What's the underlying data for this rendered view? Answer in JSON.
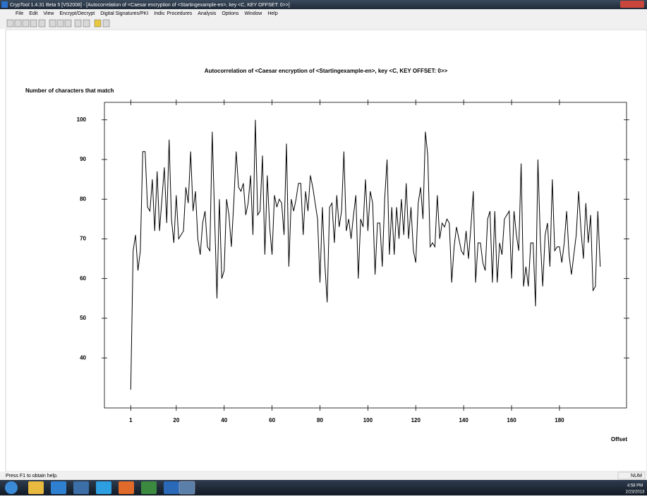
{
  "window": {
    "title": "CrypTool 1.4.31 Beta 5 [VS2008] - [Autocorrelation of <Caesar encryption of <Startingexample-en>, key <C, KEY OFFSET: 0>>]",
    "menu": [
      "File",
      "Edit",
      "View",
      "Encrypt/Decrypt",
      "Digital Signatures/PKI",
      "Indiv. Procedures",
      "Analysis",
      "Options",
      "Window",
      "Help"
    ],
    "status": "Press F1 to obtain help.",
    "status_indicator": "NUM",
    "clock_time": "4:58 PM",
    "clock_date": "2/23/2013"
  },
  "chart_data": {
    "type": "line",
    "title": "Autocorrelation of <Caesar encryption of <Startingexample-en>, key <C, KEY OFFSET: 0>>",
    "ylabel": "Number of characters that match",
    "xlabel": "Offset",
    "color": "#000000",
    "xlim": [
      -10,
      208
    ],
    "xticks": [
      1,
      20,
      40,
      60,
      80,
      100,
      120,
      140,
      160,
      180
    ],
    "ylim": [
      27.4,
      104.4
    ],
    "yticks": [
      40,
      50,
      60,
      70,
      80,
      90,
      100
    ],
    "x": [
      1,
      2,
      3,
      4,
      5,
      6,
      7,
      8,
      9,
      10,
      11,
      12,
      13,
      14,
      15,
      16,
      17,
      18,
      19,
      20,
      21,
      22,
      23,
      24,
      25,
      26,
      27,
      28,
      29,
      30,
      31,
      32,
      33,
      34,
      35,
      36,
      37,
      38,
      39,
      40,
      41,
      42,
      43,
      44,
      45,
      46,
      47,
      48,
      49,
      50,
      51,
      52,
      53,
      54,
      55,
      56,
      57,
      58,
      59,
      60,
      61,
      62,
      63,
      64,
      65,
      66,
      67,
      68,
      69,
      70,
      71,
      72,
      73,
      74,
      75,
      76,
      77,
      78,
      79,
      80,
      81,
      82,
      83,
      84,
      85,
      86,
      87,
      88,
      89,
      90,
      91,
      92,
      93,
      94,
      95,
      96,
      97,
      98,
      99,
      100,
      101,
      102,
      103,
      104,
      105,
      106,
      107,
      108,
      109,
      110,
      111,
      112,
      113,
      114,
      115,
      116,
      117,
      118,
      119,
      120,
      121,
      122,
      123,
      124,
      125,
      126,
      127,
      128,
      129,
      130,
      131,
      132,
      133,
      134,
      135,
      136,
      137,
      138,
      139,
      140,
      141,
      142,
      143,
      144,
      145,
      146,
      147,
      148,
      149,
      150,
      151,
      152,
      153,
      154,
      155,
      156,
      157,
      158,
      159,
      160,
      161,
      162,
      163,
      164,
      165,
      166,
      167,
      168,
      169,
      170,
      171,
      172,
      173,
      174,
      175,
      176,
      177,
      178,
      179,
      180,
      181,
      182,
      183,
      184,
      185,
      186,
      187,
      188,
      189,
      190,
      191,
      192,
      193,
      194,
      195,
      196,
      197
    ],
    "values": [
      32,
      67,
      71,
      62,
      67,
      92,
      92,
      78,
      77,
      85,
      72,
      87,
      72,
      80,
      88,
      74,
      95,
      75,
      69,
      81,
      70,
      71,
      72,
      83,
      79,
      92,
      77,
      82,
      70,
      66,
      74,
      77,
      68,
      67,
      97,
      76,
      55,
      80,
      60,
      62,
      80,
      76,
      68,
      79,
      92,
      83,
      82,
      84,
      76,
      79,
      86,
      71,
      100,
      76,
      77,
      91,
      66,
      86,
      73,
      66,
      81,
      78,
      80,
      79,
      71,
      94,
      63,
      80,
      77,
      80,
      84,
      84,
      71,
      82,
      77,
      86,
      83,
      79,
      75,
      59,
      78,
      64,
      54,
      78,
      79,
      69,
      81,
      73,
      77,
      92,
      72,
      75,
      70,
      76,
      81,
      60,
      75,
      73,
      85,
      72,
      82,
      79,
      61,
      74,
      74,
      63,
      80,
      90,
      66,
      78,
      66,
      78,
      70,
      80,
      71,
      84,
      70,
      78,
      67,
      64,
      79,
      83,
      75,
      97,
      91,
      68,
      69,
      68,
      81,
      70,
      74,
      73,
      75,
      74,
      59,
      68,
      73,
      70,
      67,
      66,
      72,
      65,
      73,
      82,
      59,
      69,
      69,
      64,
      62,
      75,
      77,
      59,
      77,
      59,
      69,
      66,
      75,
      76,
      77,
      60,
      77,
      71,
      67,
      89,
      58,
      63,
      58,
      69,
      69,
      53,
      90,
      70,
      58,
      71,
      74,
      63,
      85,
      67,
      68,
      68,
      64,
      69,
      77,
      66,
      61,
      66,
      71,
      82,
      72,
      65,
      79,
      69,
      76,
      57,
      58,
      77,
      63
    ]
  }
}
